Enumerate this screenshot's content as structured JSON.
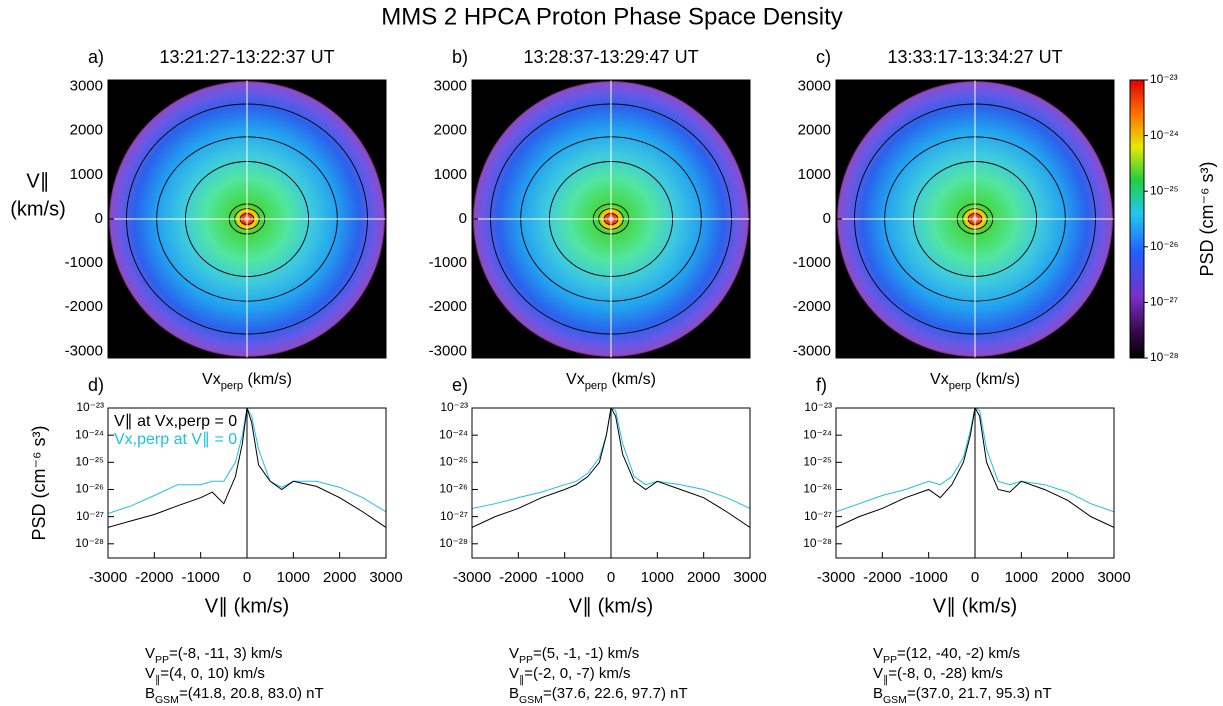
{
  "title": "MMS 2  HPCA Proton Phase Space Density",
  "chart_data": [
    {
      "type": "image",
      "label": "a)",
      "subtitle": "13:21:27-13:22:37 UT",
      "xlabel": [
        "Vx",
        "perp",
        " (km/s)"
      ],
      "ylabel": [
        "V∥",
        "(km/s)"
      ],
      "xlim": [
        -3150,
        3150
      ],
      "ylim": [
        -3150,
        3150
      ],
      "yticks": [
        -3000,
        -2000,
        -1000,
        0,
        1000,
        2000,
        3000
      ]
    },
    {
      "type": "image",
      "label": "b)",
      "subtitle": "13:28:37-13:29:47 UT",
      "xlabel": [
        "Vx",
        "perp",
        " (km/s)"
      ],
      "xlim": [
        -3150,
        3150
      ],
      "ylim": [
        -3150,
        3150
      ],
      "yticks": [
        -3000,
        -2000,
        -1000,
        0,
        1000,
        2000,
        3000
      ]
    },
    {
      "type": "image",
      "label": "c)",
      "subtitle": "13:33:17-13:34:27 UT",
      "xlabel": [
        "Vx",
        "perp",
        " (km/s)"
      ],
      "xlim": [
        -3150,
        3150
      ],
      "ylim": [
        -3150,
        3150
      ],
      "yticks": [
        -3000,
        -2000,
        -1000,
        0,
        1000,
        2000,
        3000
      ]
    },
    {
      "type": "colorbar",
      "title": "PSD (cm⁻⁶ s³)",
      "log": true,
      "clim": [
        1e-28,
        1e-23
      ],
      "ticks": [
        {
          "value": 1e-23,
          "label": "10⁻²³"
        },
        {
          "value": 1e-24,
          "label": "10⁻²⁴"
        },
        {
          "value": 1e-25,
          "label": "10⁻²⁵"
        },
        {
          "value": 1e-26,
          "label": "10⁻²⁶"
        },
        {
          "value": 1e-27,
          "label": "10⁻²⁷"
        },
        {
          "value": 1e-28,
          "label": "10⁻²⁸"
        }
      ]
    },
    {
      "type": "line",
      "label": "d)",
      "xlabel": "V∥ (km/s)",
      "ylabel": "PSD (cm⁻⁶ s³)",
      "log_y": true,
      "legend": "upper left",
      "xlim": [
        -3000,
        3000
      ],
      "xticks": [
        -3000,
        -2000,
        -1000,
        0,
        1000,
        2000,
        3000
      ],
      "ylim": [
        3e-29,
        1e-23
      ],
      "yticks": [
        {
          "value": 1e-23,
          "label": "10⁻²³"
        },
        {
          "value": 1e-24,
          "label": "10⁻²⁴"
        },
        {
          "value": 1e-25,
          "label": "10⁻²⁵"
        },
        {
          "value": 1e-26,
          "label": "10⁻²⁶"
        },
        {
          "value": 1e-27,
          "label": "10⁻²⁷"
        },
        {
          "value": 1e-28,
          "label": "10⁻²⁸"
        }
      ],
      "x": [
        -3000,
        -2500,
        -2000,
        -1500,
        -1000,
        -750,
        -500,
        -250,
        -100,
        0,
        100,
        250,
        500,
        750,
        1000,
        1500,
        2000,
        2500,
        3000
      ],
      "series": [
        {
          "name": "V∥ at Vx,perp = 0",
          "color": "#000000",
          "values": [
            4e-28,
            7e-28,
            1.2e-27,
            2.5e-27,
            5e-27,
            8e-27,
            3e-27,
            3e-26,
            5e-25,
            1e-23,
            3e-24,
            8e-26,
            2e-26,
            1e-26,
            2e-26,
            1.3e-26,
            5e-27,
            1.5e-27,
            4e-28
          ]
        },
        {
          "name": "Vx,perp at V∥ = 0",
          "color": "#1ec0e6",
          "values": [
            1.3e-27,
            2.5e-27,
            6e-27,
            1.5e-26,
            1.5e-26,
            2e-26,
            2e-26,
            1e-25,
            1e-24,
            1e-23,
            5e-24,
            3e-25,
            2e-26,
            1.2e-26,
            2e-26,
            2e-26,
            1.2e-26,
            5e-27,
            1.5e-27
          ]
        }
      ],
      "params": [
        [
          "V",
          "PP",
          "=(-8, -11, 3) km/s"
        ],
        [
          "V",
          "∥",
          "=(4, 0, 10) km/s"
        ],
        [
          "B",
          "GSM",
          "=(41.8, 20.8, 83.0) nT"
        ]
      ]
    },
    {
      "type": "line",
      "label": "e)",
      "xlabel": "V∥ (km/s)",
      "log_y": true,
      "xlim": [
        -3000,
        3000
      ],
      "xticks": [
        -3000,
        -2000,
        -1000,
        0,
        1000,
        2000,
        3000
      ],
      "ylim": [
        3e-29,
        1e-23
      ],
      "yticks": [
        {
          "value": 1e-23,
          "label": "10⁻²³"
        },
        {
          "value": 1e-24,
          "label": "10⁻²⁴"
        },
        {
          "value": 1e-25,
          "label": "10⁻²⁵"
        },
        {
          "value": 1e-26,
          "label": "10⁻²⁶"
        },
        {
          "value": 1e-27,
          "label": "10⁻²⁷"
        },
        {
          "value": 1e-28,
          "label": "10⁻²⁸"
        }
      ],
      "x": [
        -3000,
        -2500,
        -2000,
        -1500,
        -1000,
        -750,
        -500,
        -250,
        -100,
        0,
        100,
        250,
        500,
        750,
        1000,
        1500,
        2000,
        2500,
        3000
      ],
      "series": [
        {
          "color": "#000000",
          "values": [
            4e-28,
            1e-27,
            2e-27,
            5e-27,
            1e-26,
            1.5e-26,
            3e-26,
            1e-25,
            1e-24,
            1e-23,
            5e-24,
            2e-25,
            2e-26,
            1e-26,
            2e-26,
            1e-26,
            5e-27,
            1.5e-27,
            4e-28
          ]
        },
        {
          "color": "#1ec0e6",
          "values": [
            2e-27,
            3e-27,
            5e-27,
            8e-27,
            1.5e-26,
            2e-26,
            4e-26,
            1.5e-25,
            1e-24,
            1e-23,
            8e-24,
            5e-25,
            3e-26,
            1.5e-26,
            2e-26,
            1.5e-26,
            1e-26,
            5e-27,
            2e-27
          ]
        }
      ],
      "params": [
        [
          "V",
          "PP",
          "=(5, -1, -1) km/s"
        ],
        [
          "V",
          "∥",
          "=(-2, 0, -7) km/s"
        ],
        [
          "B",
          "GSM",
          "=(37.6, 22.6, 97.7) nT"
        ]
      ]
    },
    {
      "type": "line",
      "label": "f)",
      "xlabel": "V∥ (km/s)",
      "log_y": true,
      "xlim": [
        -3000,
        3000
      ],
      "xticks": [
        -3000,
        -2000,
        -1000,
        0,
        1000,
        2000,
        3000
      ],
      "ylim": [
        3e-29,
        1e-23
      ],
      "yticks": [
        {
          "value": 1e-23,
          "label": "10⁻²³"
        },
        {
          "value": 1e-24,
          "label": "10⁻²⁴"
        },
        {
          "value": 1e-25,
          "label": "10⁻²⁵"
        },
        {
          "value": 1e-26,
          "label": "10⁻²⁶"
        },
        {
          "value": 1e-27,
          "label": "10⁻²⁷"
        },
        {
          "value": 1e-28,
          "label": "10⁻²⁸"
        }
      ],
      "x": [
        -3000,
        -2500,
        -2000,
        -1500,
        -1000,
        -750,
        -500,
        -250,
        -100,
        0,
        100,
        250,
        500,
        750,
        1000,
        1500,
        2000,
        2500,
        3000
      ],
      "series": [
        {
          "color": "#000000",
          "values": [
            4e-28,
            1e-27,
            2e-27,
            5e-27,
            1e-26,
            5e-27,
            1.5e-26,
            1e-25,
            1e-24,
            1e-23,
            5e-24,
            1e-25,
            1e-26,
            8e-27,
            2e-26,
            1e-26,
            4e-27,
            1e-27,
            4e-28
          ]
        },
        {
          "color": "#1ec0e6",
          "values": [
            1.5e-27,
            3e-27,
            6e-27,
            1e-26,
            2e-26,
            1.5e-26,
            3e-26,
            1.5e-25,
            1.5e-24,
            1e-23,
            8e-24,
            3e-25,
            2e-26,
            1.5e-26,
            2e-26,
            1.5e-26,
            8e-27,
            3e-27,
            1.5e-27
          ]
        }
      ],
      "params": [
        [
          "V",
          "PP",
          "=(12, -40, -2) km/s"
        ],
        [
          "V",
          "∥",
          "=(-8, 0, -28) km/s"
        ],
        [
          "B",
          "GSM",
          "=(37.0, 21.7, 95.3) nT"
        ]
      ]
    }
  ]
}
